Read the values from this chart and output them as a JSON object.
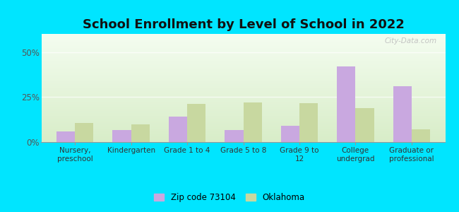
{
  "title": "School Enrollment by Level of School in 2022",
  "categories": [
    "Nursery,\npreschool",
    "Kindergarten",
    "Grade 1 to 4",
    "Grade 5 to 8",
    "Grade 9 to\n12",
    "College\nundergrad",
    "Graduate or\nprofessional"
  ],
  "zip_values": [
    6.0,
    6.5,
    14.0,
    6.5,
    9.0,
    42.0,
    31.0
  ],
  "ok_values": [
    10.5,
    10.0,
    21.0,
    22.0,
    21.5,
    19.0,
    7.0
  ],
  "zip_color": "#c9a8e0",
  "ok_color": "#c8d8a0",
  "background_outer": "#00e5ff",
  "ylim": [
    0,
    60
  ],
  "yticks": [
    0,
    25,
    50
  ],
  "ytick_labels": [
    "0%",
    "25%",
    "50%"
  ],
  "legend_zip_label": "Zip code 73104",
  "legend_ok_label": "Oklahoma",
  "title_fontsize": 13,
  "watermark": "City-Data.com"
}
